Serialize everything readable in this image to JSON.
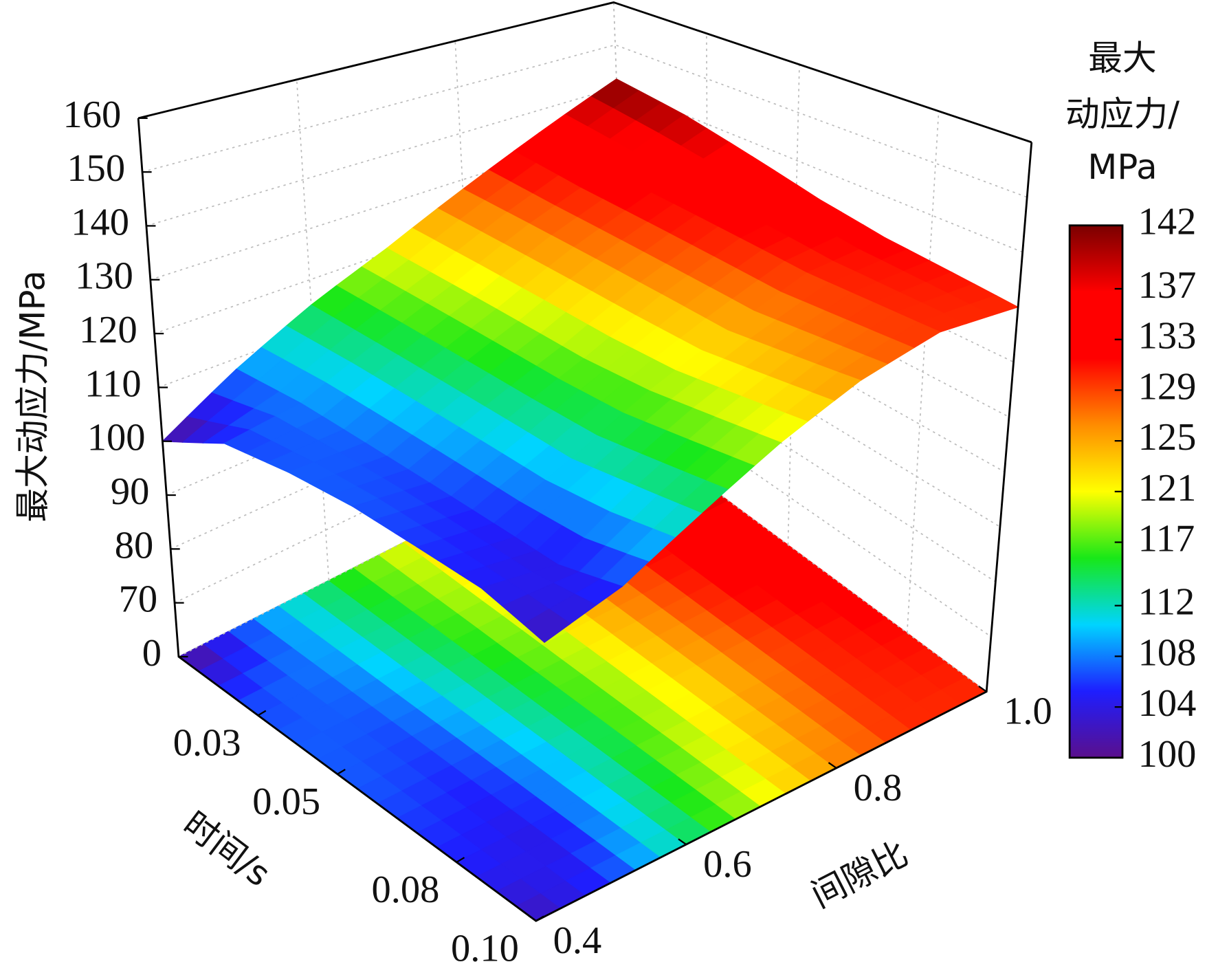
{
  "chart_data": {
    "type": "surface3d",
    "zlabel": "最大动应力/MPa",
    "xlabel": "时间/s",
    "ylabel": "间隙比",
    "colorbar_label": [
      "最大",
      "动应力/",
      "MPa"
    ],
    "x": [
      0.01,
      0.025,
      0.04,
      0.055,
      0.07,
      0.085,
      0.1
    ],
    "y": [
      0.4,
      0.5,
      0.6,
      0.7,
      0.8,
      0.9,
      1.0
    ],
    "z": [
      [
        100,
        108,
        115,
        121,
        128,
        135,
        142
      ],
      [
        106,
        108,
        114,
        120,
        127,
        133,
        140
      ],
      [
        107,
        107,
        113,
        119,
        126,
        132,
        137
      ],
      [
        107,
        106,
        112,
        118,
        125,
        131,
        134
      ],
      [
        106,
        105,
        111,
        118,
        124,
        130,
        132
      ],
      [
        105,
        104,
        112,
        119,
        125,
        130,
        131
      ],
      [
        102,
        106,
        113,
        120,
        126,
        130,
        130
      ]
    ],
    "xlim": [
      0.01,
      0.1
    ],
    "xticks": [
      0.03,
      0.05,
      0.08,
      {
        "value": 0.1,
        "label": "0.10"
      }
    ],
    "ylim": [
      0.4,
      1.0
    ],
    "yticks": [
      0.4,
      0.6,
      0.8,
      {
        "value": 1.0,
        "label": "1.0"
      }
    ],
    "zlim": [
      0,
      160
    ],
    "z_break": [
      0,
      60
    ],
    "zticks": [
      0,
      70,
      80,
      90,
      100,
      110,
      120,
      130,
      140,
      150,
      160
    ],
    "clim": [
      100,
      142
    ],
    "cticks": [
      100,
      104,
      108,
      112,
      117,
      121,
      125,
      129,
      133,
      137,
      142
    ],
    "colormap": [
      "#5a0f8c",
      "#1e1eff",
      "#00d4ff",
      "#18e818",
      "#ffff00",
      "#ff8c00",
      "#ff0000",
      "#ff0000",
      "#7a0000"
    ],
    "floor_projection": true,
    "grid": true
  }
}
